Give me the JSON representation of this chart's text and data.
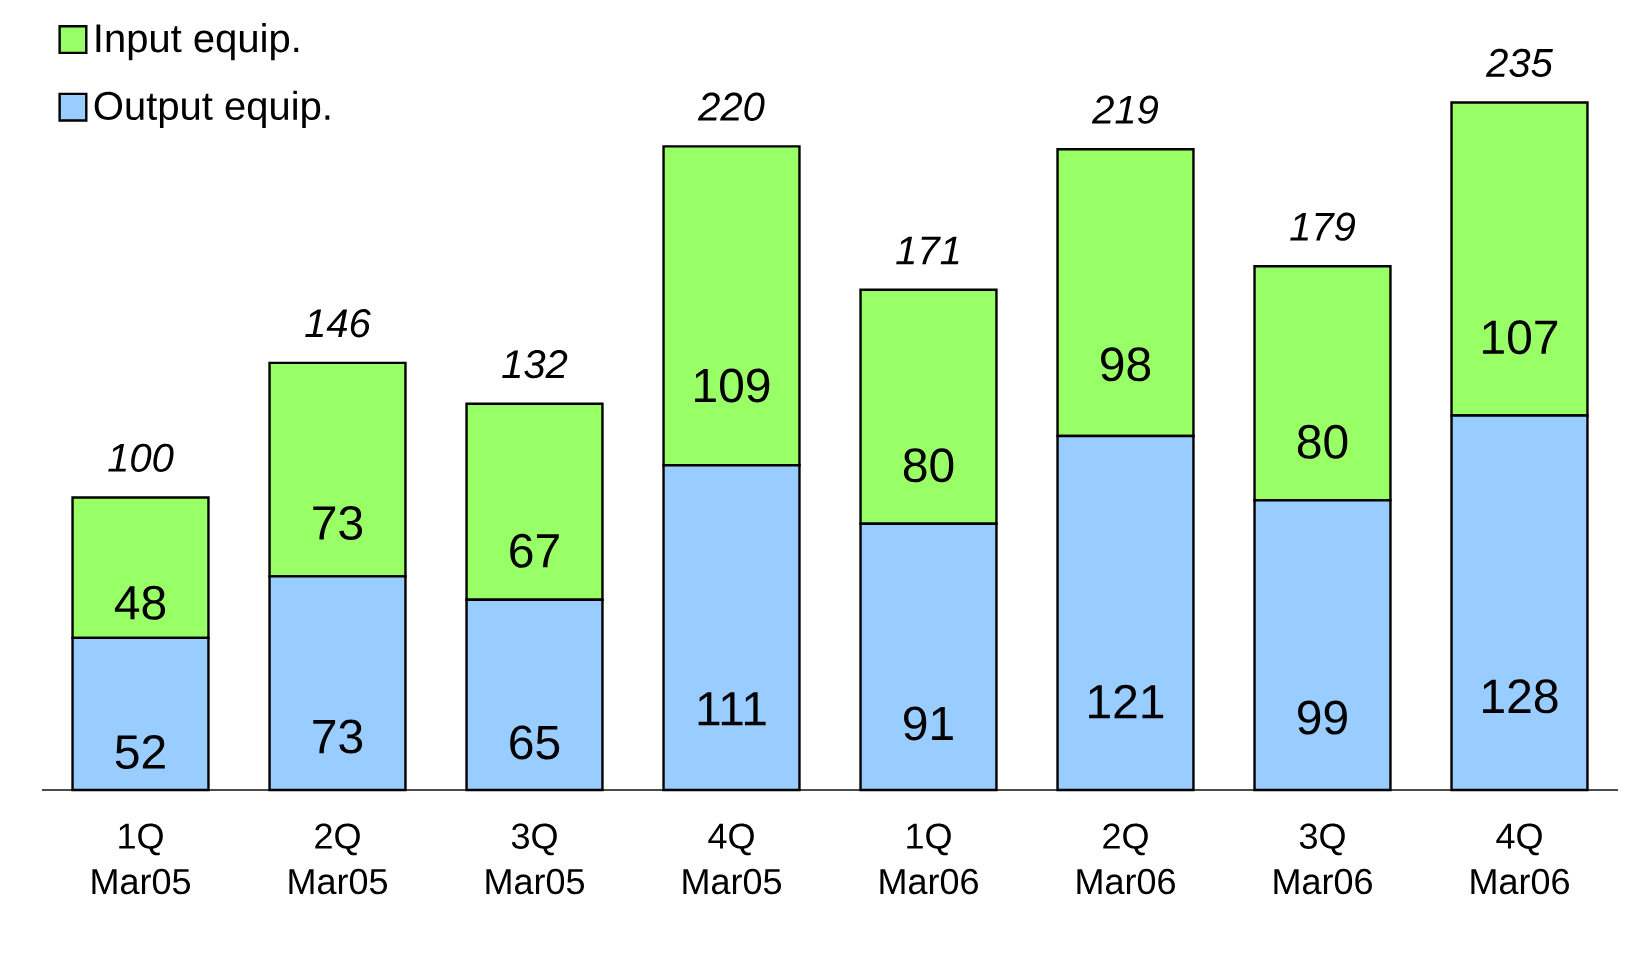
{
  "chart_data": {
    "type": "bar",
    "stacked": true,
    "categories": [
      "1Q Mar05",
      "2Q Mar05",
      "3Q Mar05",
      "4Q Mar05",
      "1Q Mar06",
      "2Q Mar06",
      "3Q Mar06",
      "4Q Mar06"
    ],
    "series": [
      {
        "name": "Output equip.",
        "color": "#99ccff",
        "values": [
          52,
          73,
          65,
          111,
          91,
          121,
          99,
          128
        ]
      },
      {
        "name": "Input equip.",
        "color": "#99ff66",
        "values": [
          48,
          73,
          67,
          109,
          80,
          98,
          80,
          107
        ]
      }
    ],
    "totals": [
      "100",
      "146",
      "132",
      "220",
      "171",
      "219",
      "179",
      "235"
    ],
    "data_labels": true,
    "legend": "top left"
  }
}
